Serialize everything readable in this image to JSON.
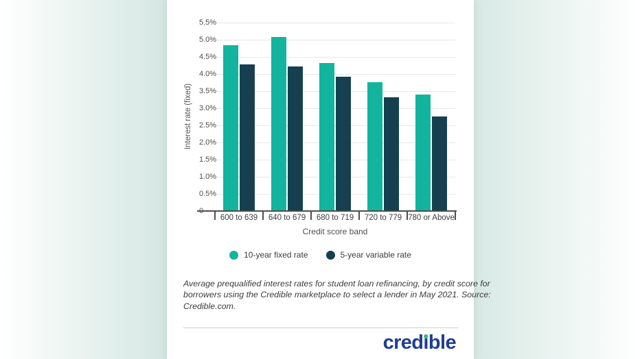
{
  "page": {
    "background_edge_color": "#ffffff",
    "background_mint_color": "#d6e9e4"
  },
  "chart_data": {
    "type": "bar",
    "categories": [
      "600 to 639",
      "640 to 679",
      "680 to 719",
      "720 to 779",
      "780 or Above"
    ],
    "series": [
      {
        "name": "10-year fixed rate",
        "color": "#12b49e",
        "values": [
          4.85,
          5.08,
          4.32,
          3.76,
          3.41
        ]
      },
      {
        "name": "5-year variable rate",
        "color": "#164050",
        "values": [
          4.29,
          4.22,
          3.92,
          3.33,
          2.77
        ]
      }
    ],
    "title": "",
    "xlabel": "Credit score band",
    "ylabel": "Interest rate (fixed)",
    "ylim": [
      0,
      5.5
    ],
    "ytick_values": [
      0,
      0.5,
      1.0,
      1.5,
      2.0,
      2.5,
      3.0,
      3.5,
      4.0,
      4.5,
      5.0,
      5.5
    ],
    "ytick_labels": [
      "0",
      "0.5%",
      "1.0%",
      "1.5%",
      "2.0%",
      "2.5%",
      "3.0%",
      "3.5%",
      "4.0%",
      "4.5%",
      "5.0%",
      "5.5%"
    ],
    "grid": true,
    "legend_position": "bottom"
  },
  "caption": {
    "lines": [
      "Average prequalified interest rates for student loan refinancing, by credit score for",
      "borrowers using the Credible marketplace to select a lender in May 2021. Source:",
      "Credible.com."
    ]
  },
  "footer": {
    "brand": "credible",
    "logo": {
      "pre": "cred",
      "i": "ı",
      "post": "ble"
    },
    "logo_text_color": "#1f3e92",
    "logo_dot_color": "#3cb581"
  }
}
